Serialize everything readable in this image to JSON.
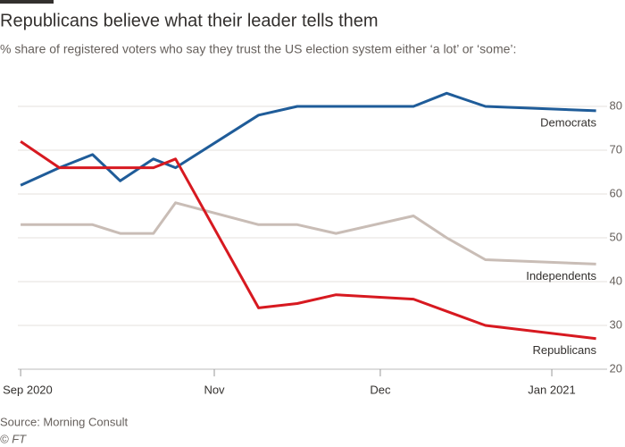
{
  "chart_data": {
    "type": "line",
    "title": "Republicans believe what their leader tells them",
    "subtitle": "% share of registered voters who say they trust the US election system either ‘a lot’ or ‘some’:",
    "source": "Source: Morning Consult",
    "credit": "© FT",
    "xlim": [
      25.5,
      132
    ],
    "xticks": [
      {
        "value": 26,
        "label": "Sep 2020"
      },
      {
        "value": 61,
        "label": "Nov"
      },
      {
        "value": 91,
        "label": "Dec"
      },
      {
        "value": 122,
        "label": "Jan 2021"
      }
    ],
    "ylim": [
      20,
      86
    ],
    "yticks": [
      20,
      30,
      40,
      50,
      60,
      70,
      80
    ],
    "grid": true,
    "series": [
      {
        "name": "Democrats",
        "color": "#1f5c99",
        "x": [
          26,
          33,
          39,
          44,
          50,
          54,
          69,
          76,
          86,
          97,
          103,
          110,
          130
        ],
        "values": [
          62,
          66,
          69,
          63,
          68,
          66,
          78,
          80,
          80,
          80,
          83,
          80,
          79
        ]
      },
      {
        "name": "Independents",
        "color": "#c9bdb6",
        "x": [
          26,
          39,
          44,
          50,
          54,
          69,
          76,
          83,
          97,
          103,
          110,
          130
        ],
        "values": [
          53,
          53,
          51,
          51,
          58,
          53,
          53,
          51,
          55,
          50,
          45,
          44
        ]
      },
      {
        "name": "Republicans",
        "color": "#d71920",
        "x": [
          26,
          33,
          39,
          44,
          50,
          54,
          69,
          76,
          83,
          97,
          110,
          130
        ],
        "values": [
          72,
          66,
          66,
          66,
          66,
          68,
          34,
          35,
          37,
          36,
          30,
          27
        ]
      }
    ]
  }
}
